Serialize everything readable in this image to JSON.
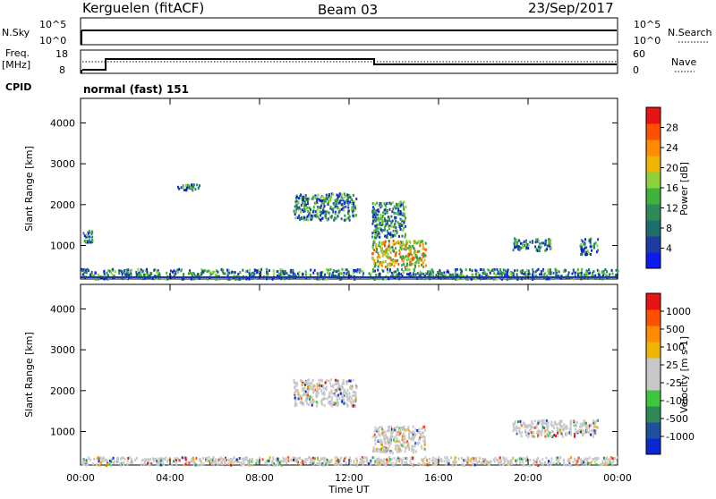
{
  "header": {
    "station": "Kerguelen (fitACF)",
    "beam": "Beam 03",
    "date": "23/Sep/2017"
  },
  "noise_panel": {
    "left_label": "N.Sky",
    "right_label": "N.Search",
    "left_ticks": [
      "10^5",
      "10^0"
    ],
    "right_ticks": [
      "10^5",
      "10^0"
    ]
  },
  "freq_panel": {
    "left_label_1": "Freq.",
    "left_label_2": "[MHz]",
    "right_label": "Nave",
    "left_ticks": [
      "18",
      "8"
    ],
    "right_ticks": [
      "60",
      "0"
    ],
    "cpid_label": "CPID",
    "cpid_text": "normal (fast) 151"
  },
  "chart_data": [
    {
      "type": "heatmap",
      "title": "",
      "ylabel": "Slant Range [km]",
      "xlabel": "",
      "x_ticks": [
        "00:00",
        "04:00",
        "08:00",
        "12:00",
        "16:00",
        "20:00",
        "00:00"
      ],
      "y_ticks": [
        "1000",
        "2000",
        "3000",
        "4000"
      ],
      "ylim": [
        180,
        4600
      ],
      "xlim_hours": [
        0,
        24
      ],
      "colorbar": {
        "label": "Power [dB]",
        "ticks": [
          "4",
          "8",
          "12",
          "16",
          "20",
          "24",
          "28"
        ],
        "colors": [
          "#0a1cf0",
          "#1e3ca0",
          "#1e6e6e",
          "#2e8b57",
          "#3cb33c",
          "#8cd23c",
          "#f0b400",
          "#ff8c00",
          "#ff5000",
          "#e61414"
        ]
      },
      "regions": [
        {
          "name": "near-range ground scatter band",
          "t0": 0,
          "t1": 24,
          "r0": 200,
          "r1": 450
        },
        {
          "name": "early-morning patch",
          "t0": 0.1,
          "t1": 0.5,
          "r0": 1100,
          "r1": 1400
        },
        {
          "name": "morning patch",
          "t0": 4.3,
          "t1": 5.3,
          "r0": 2380,
          "r1": 2520
        },
        {
          "name": "ionospheric echoes",
          "t0": 9.5,
          "t1": 12.3,
          "r0": 1650,
          "r1": 2300
        },
        {
          "name": "enhanced patch",
          "t0": 13.0,
          "t1": 15.4,
          "r0": 500,
          "r1": 1150
        },
        {
          "name": "afternoon arc",
          "t0": 13.0,
          "t1": 14.5,
          "r0": 1200,
          "r1": 2100
        },
        {
          "name": "evening patch 1",
          "t0": 19.3,
          "t1": 21.0,
          "r0": 900,
          "r1": 1200
        },
        {
          "name": "evening patch 2",
          "t0": 22.3,
          "t1": 23.1,
          "r0": 800,
          "r1": 1200
        }
      ]
    },
    {
      "type": "heatmap",
      "title": "",
      "ylabel": "Slant Range [km]",
      "xlabel": "Time UT",
      "x_ticks": [
        "00:00",
        "04:00",
        "08:00",
        "12:00",
        "16:00",
        "20:00",
        "00:00"
      ],
      "y_ticks": [
        "1000",
        "2000",
        "3000",
        "4000"
      ],
      "ylim": [
        180,
        4600
      ],
      "xlim_hours": [
        0,
        24
      ],
      "colorbar": {
        "label": "Velocity [m s-1]",
        "ticks": [
          "1000",
          "500",
          "100",
          "25",
          "-25",
          "-100",
          "-500",
          "-1000"
        ],
        "colors": [
          "#0a28d2",
          "#1e50a0",
          "#2e8b57",
          "#3cc83c",
          "#c8c8c8",
          "#c8c8c8",
          "#f0b400",
          "#ff8c00",
          "#ff5000",
          "#e61414"
        ]
      },
      "regions": [
        {
          "name": "near-range ground scatter band",
          "t0": 0,
          "t1": 24,
          "r0": 200,
          "r1": 400
        },
        {
          "name": "ionospheric echoes",
          "t0": 9.5,
          "t1": 12.3,
          "r0": 1650,
          "r1": 2300
        },
        {
          "name": "enhanced patch",
          "t0": 13.0,
          "t1": 15.4,
          "r0": 500,
          "r1": 1150
        },
        {
          "name": "evening ground scatter",
          "t0": 19.3,
          "t1": 23.1,
          "r0": 900,
          "r1": 1300
        }
      ]
    }
  ]
}
